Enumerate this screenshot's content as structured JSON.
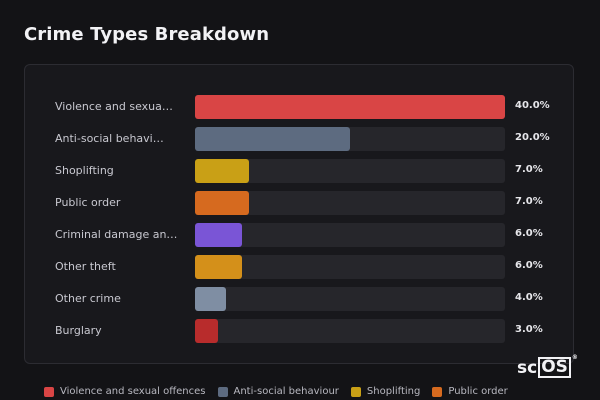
{
  "header": {
    "title": "Crime Types Breakdown"
  },
  "chart_data": {
    "type": "bar",
    "orientation": "horizontal",
    "max": 40,
    "categories": [
      "Violence and sexua…",
      "Anti-social behavi…",
      "Shoplifting",
      "Public order",
      "Criminal damage an…",
      "Other theft",
      "Other crime",
      "Burglary"
    ],
    "values": [
      40.0,
      20.0,
      7.0,
      7.0,
      6.0,
      6.0,
      4.0,
      3.0
    ],
    "value_labels": [
      "40.0%",
      "20.0%",
      "7.0%",
      "7.0%",
      "6.0%",
      "6.0%",
      "4.0%",
      "3.0%"
    ],
    "colors": [
      "#d94545",
      "#5d6b80",
      "#c9a016",
      "#d66a1f",
      "#7a55d6",
      "#d4901a",
      "#7f8ea3",
      "#b82c2c"
    ],
    "legend": [
      {
        "label": "Violence and sexual offences",
        "color": "#d94545"
      },
      {
        "label": "Anti-social behaviour",
        "color": "#5d6b80"
      },
      {
        "label": "Shoplifting",
        "color": "#c9a016"
      },
      {
        "label": "Public order",
        "color": "#d66a1f"
      }
    ]
  },
  "logo": {
    "prefix": "sc",
    "boxed": "OS",
    "mark": "®"
  }
}
